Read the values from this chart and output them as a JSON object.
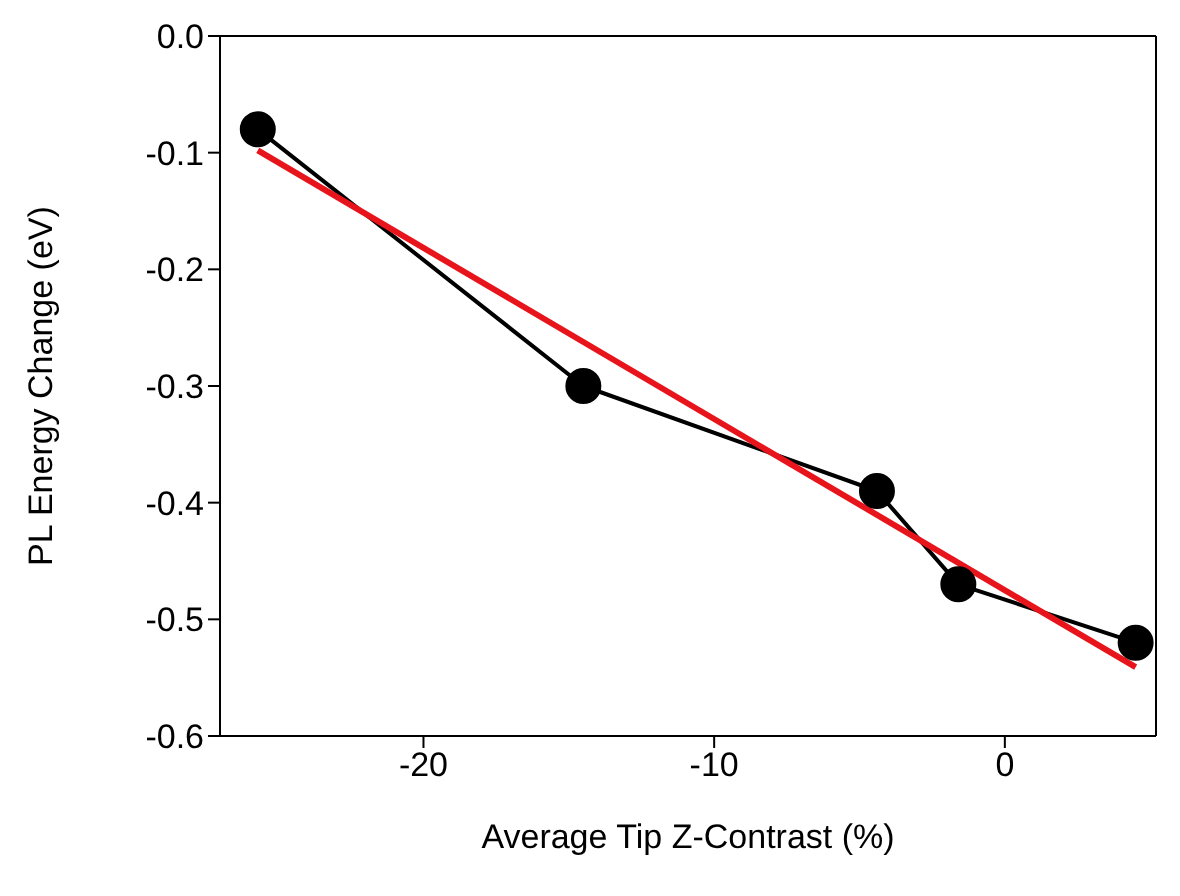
{
  "chart_data": {
    "type": "line",
    "xlabel": "Average Tip Z-Contrast (%)",
    "ylabel": "PL Energy Change (eV)",
    "xlim": [
      -27,
      5.2
    ],
    "xticks": [
      -20,
      -10,
      0
    ],
    "ylim": [
      -0.6,
      0
    ],
    "yticks": [
      {
        "value": 0,
        "label": "0.0"
      },
      -0.1,
      -0.2,
      -0.3,
      -0.4,
      -0.5,
      -0.6
    ],
    "marker": "circle",
    "line_style": "solid",
    "series": [
      {
        "color": "#000000",
        "x": [
          -25.7,
          -14.5,
          -4.4,
          -1.6,
          4.5
        ],
        "values": [
          -0.08,
          -0.3,
          -0.39,
          -0.47,
          -0.52
        ]
      },
      {
        "color": "#e8141b",
        "marker": "none",
        "x": [
          -25.7,
          4.5
        ],
        "values": [
          -0.098,
          -0.541
        ]
      }
    ]
  }
}
